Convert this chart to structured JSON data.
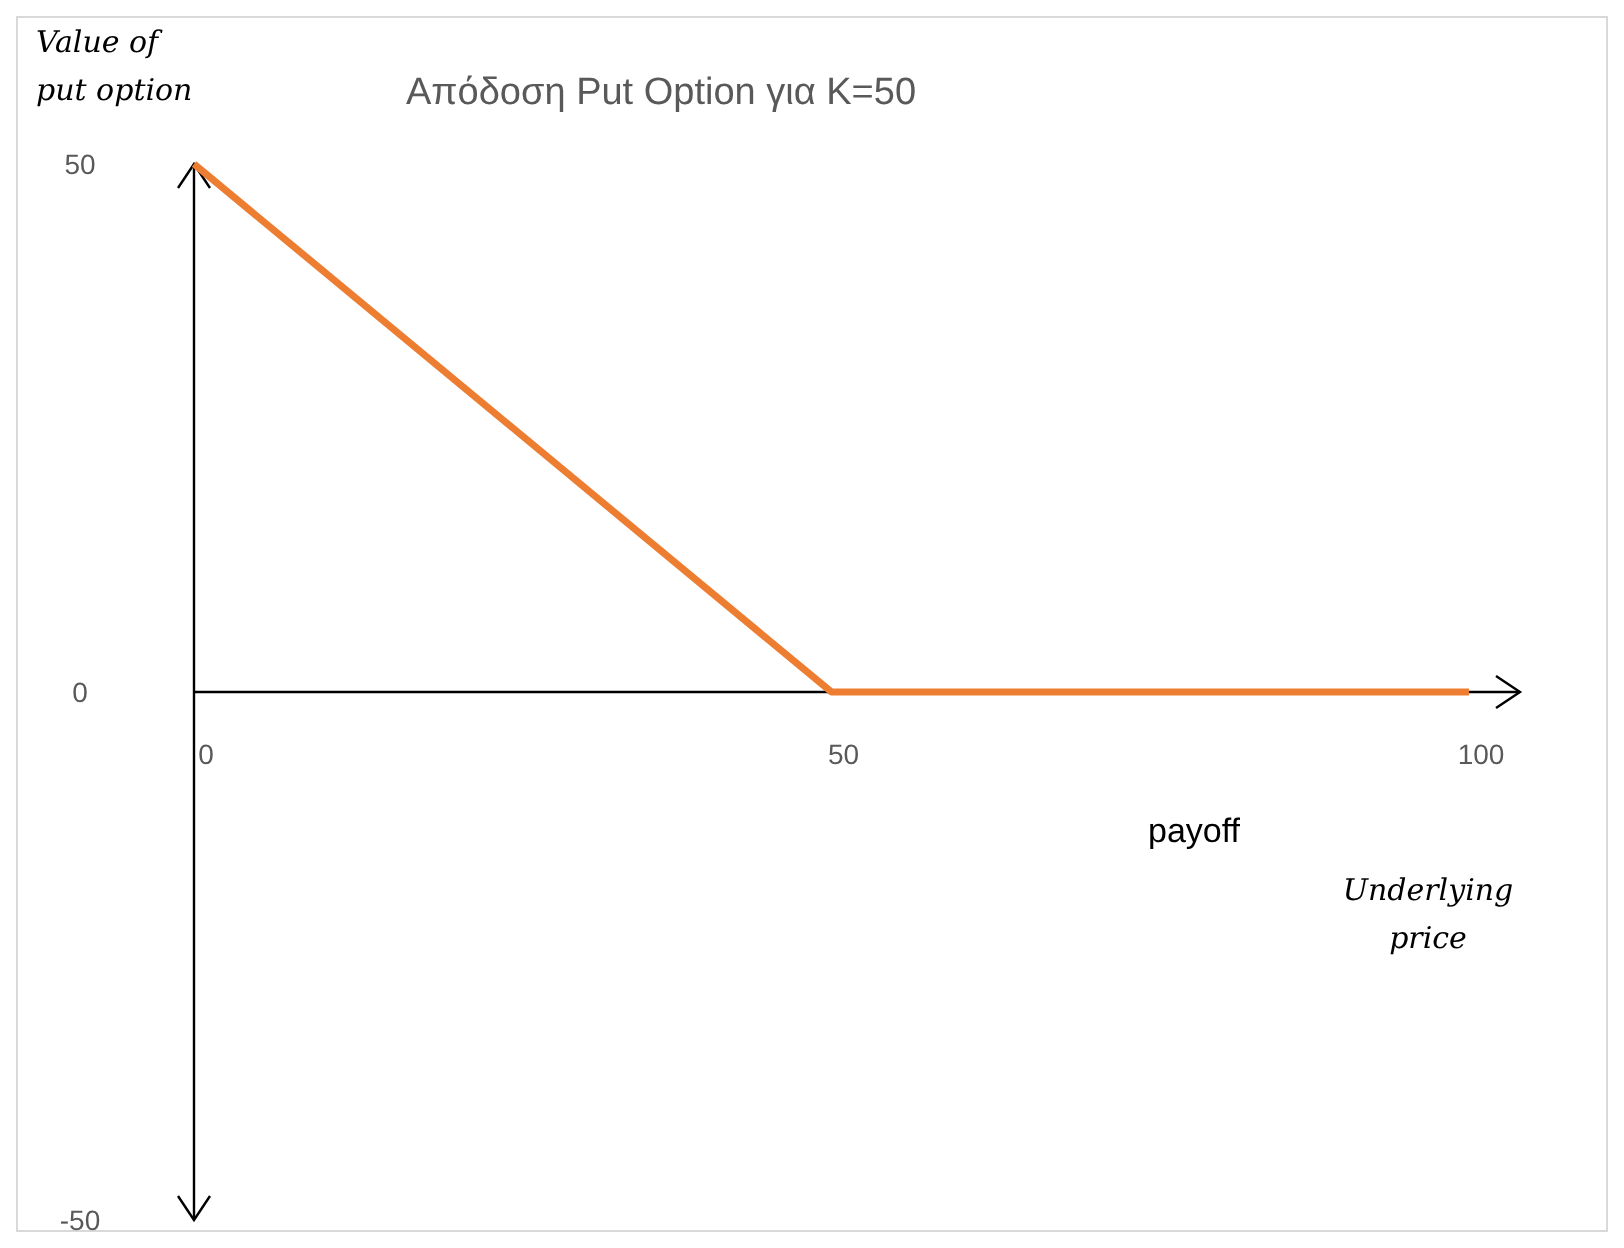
{
  "chart_data": {
    "type": "line",
    "title": "Απόδοση Put Option για K=50",
    "xlabel": "Underlying price",
    "ylabel": "Value of put option",
    "annotations": [
      "payoff"
    ],
    "x": [
      0,
      50,
      100
    ],
    "series": [
      {
        "color": "#ed7d31",
        "values": [
          50,
          0,
          0
        ]
      }
    ],
    "xlim": [
      0,
      104
    ],
    "xticks": [
      0,
      50,
      100
    ],
    "ylim": [
      -50,
      50
    ],
    "yticks": [
      -50,
      0,
      50
    ],
    "grid": false,
    "marker": "none",
    "line_style": "solid"
  }
}
